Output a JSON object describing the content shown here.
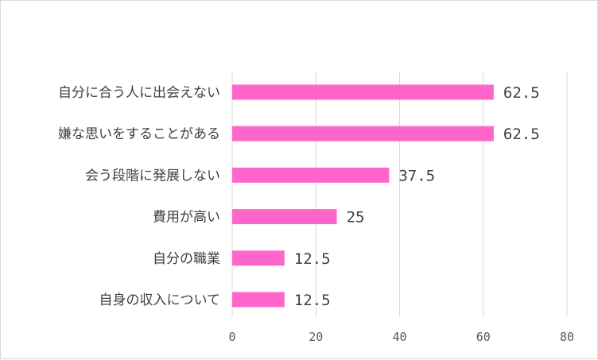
{
  "chart_data": {
    "type": "bar",
    "orientation": "horizontal",
    "categories": [
      "自分に合う人に出会えない",
      "嫌な思いをすることがある",
      "会う段階に発展しない",
      "費用が高い",
      "自分の職業",
      "自身の収入について"
    ],
    "values": [
      62.5,
      62.5,
      37.5,
      25,
      12.5,
      12.5
    ],
    "value_labels": [
      "62.5",
      "62.5",
      "37.5",
      "25",
      "12.5",
      "12.5"
    ],
    "xlim": [
      0,
      80
    ],
    "xticks": [
      0,
      20,
      40,
      60,
      80
    ],
    "grid": true,
    "legend": false,
    "bar_color": "#ff66cc",
    "gridline_color": "#d9d9d9"
  }
}
